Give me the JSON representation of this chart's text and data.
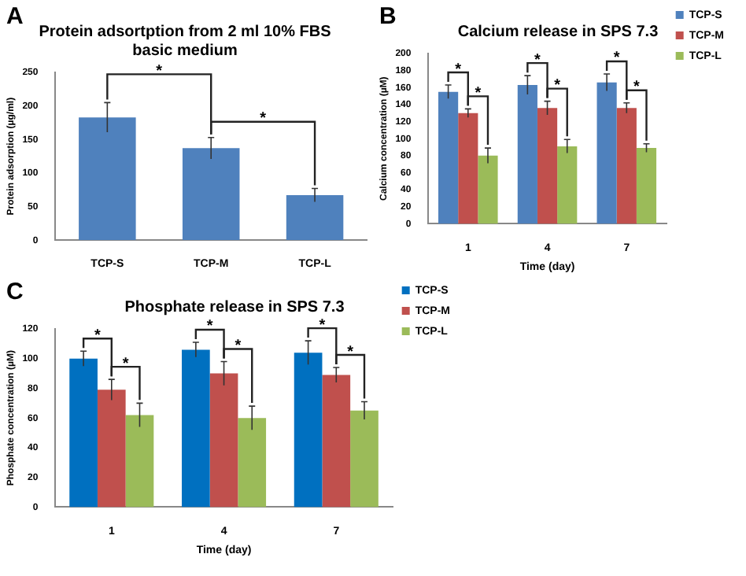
{
  "chart_data": [
    {
      "type": "bar",
      "title": "Protein adsortption from 2 ml 10% FBS basic medium",
      "ylabel": "Protein adsorption (µg/ml)",
      "categories": [
        "TCP-S",
        "TCP-M",
        "TCP-L"
      ],
      "series": [
        {
          "color": "#4f81bd",
          "values": [
            183,
            137,
            67
          ],
          "errors": [
            22,
            16,
            10
          ]
        }
      ],
      "ylim": [
        0,
        250
      ],
      "yticks": [
        0,
        50,
        100,
        150,
        200,
        250
      ],
      "grid": false,
      "legend": false,
      "annotations": [
        "A",
        "*",
        "*"
      ]
    },
    {
      "type": "bar",
      "title": "Calcium release in SPS 7.3",
      "xlabel": "Time (day)",
      "ylabel": "Calcium concentration (µM)",
      "categories": [
        "1",
        "4",
        "7"
      ],
      "series": [
        {
          "name": "TCP-S",
          "color": "#4f81bd",
          "values": [
            155,
            163,
            166
          ],
          "errors": [
            8,
            11,
            10
          ]
        },
        {
          "name": "TCP-M",
          "color": "#c0504d",
          "values": [
            130,
            136,
            136
          ],
          "errors": [
            5,
            8,
            6
          ]
        },
        {
          "name": "TCP-L",
          "color": "#9bbb59",
          "values": [
            80,
            91,
            89
          ],
          "errors": [
            9,
            8,
            5
          ]
        }
      ],
      "ylim": [
        0,
        200
      ],
      "yticks": [
        0,
        20,
        40,
        60,
        80,
        100,
        120,
        140,
        160,
        180,
        200
      ],
      "grid": false,
      "legend": "top right",
      "annotations": [
        "B",
        "*",
        "*",
        "*",
        "*",
        "*",
        "*"
      ]
    },
    {
      "type": "bar",
      "title": "Phosphate release in SPS 7.3",
      "xlabel": "Time (day)",
      "ylabel": "Phosphate concentration (µM)",
      "categories": [
        "1",
        "4",
        "7"
      ],
      "series": [
        {
          "name": "TCP-S",
          "color": "#0070c0",
          "values": [
            100,
            106,
            104
          ],
          "errors": [
            5,
            5,
            8
          ]
        },
        {
          "name": "TCP-M",
          "color": "#c0504d",
          "values": [
            79,
            90,
            89
          ],
          "errors": [
            7,
            8,
            5
          ]
        },
        {
          "name": "TCP-L",
          "color": "#9bbb59",
          "values": [
            62,
            60,
            65
          ],
          "errors": [
            8,
            8,
            6
          ]
        }
      ],
      "ylim": [
        0,
        120
      ],
      "yticks": [
        0,
        20,
        40,
        60,
        80,
        100,
        120
      ],
      "grid": false,
      "legend": "top right",
      "annotations": [
        "C",
        "*",
        "*",
        "*",
        "*",
        "*",
        "*"
      ]
    }
  ]
}
